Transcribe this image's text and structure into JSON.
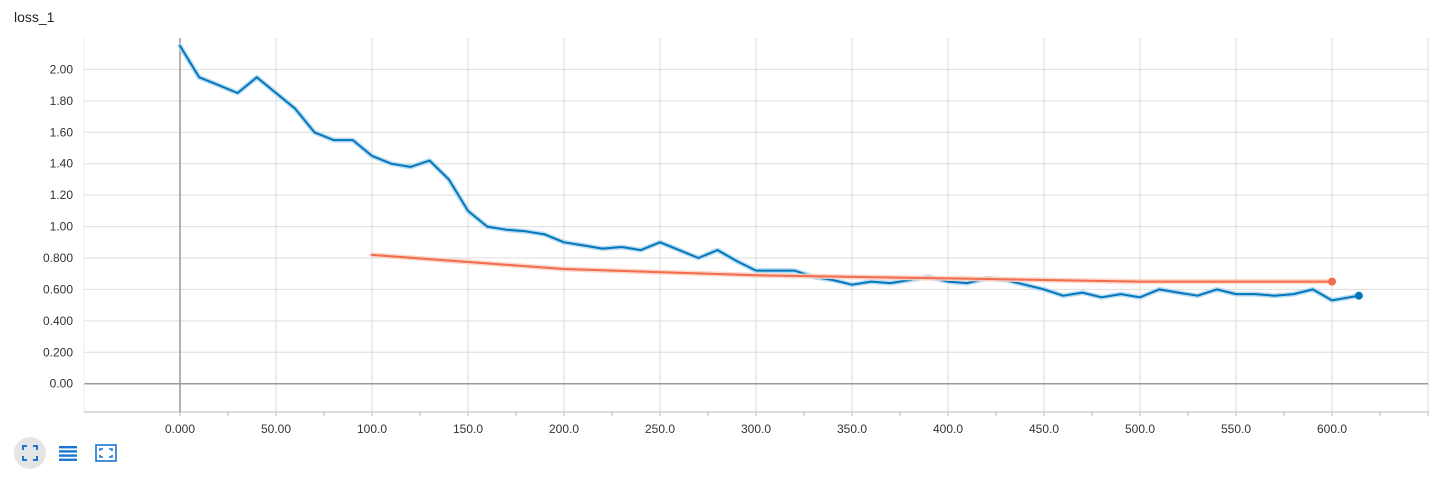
{
  "chart_title": "loss_1",
  "icons": {
    "expand": "fullscreen-icon",
    "data_table": "list-icon",
    "fit_domain": "fit-to-data-icon"
  },
  "colors": {
    "series_blue": "#0277bd",
    "series_blue_raw": "#b3d7ee",
    "series_orange": "#f26d4b",
    "series_orange_raw": "#fbd0c4",
    "grid": "#dddddd",
    "axis": "#999999"
  },
  "chart_data": {
    "type": "line",
    "title": "loss_1",
    "xlabel": "",
    "ylabel": "",
    "xlim": [
      -50,
      650
    ],
    "ylim": [
      -0.18,
      2.2
    ],
    "grid": true,
    "x_ticks": [
      "0.000",
      "50.00",
      "100.0",
      "150.0",
      "200.0",
      "250.0",
      "300.0",
      "350.0",
      "400.0",
      "450.0",
      "500.0",
      "550.0",
      "600.0"
    ],
    "y_ticks": [
      "0.00",
      "0.200",
      "0.400",
      "0.600",
      "0.800",
      "1.00",
      "1.20",
      "1.40",
      "1.60",
      "1.80",
      "2.00"
    ],
    "series": [
      {
        "color": "#0277bd",
        "raw_color": "#b3d7ee",
        "x": [
          0,
          10,
          20,
          30,
          40,
          50,
          60,
          70,
          80,
          90,
          100,
          110,
          120,
          130,
          140,
          150,
          160,
          170,
          180,
          190,
          200,
          210,
          220,
          230,
          240,
          250,
          260,
          270,
          280,
          290,
          300,
          310,
          320,
          330,
          340,
          350,
          360,
          370,
          380,
          390,
          400,
          410,
          420,
          430,
          440,
          450,
          460,
          470,
          480,
          490,
          500,
          510,
          520,
          530,
          540,
          550,
          560,
          570,
          580,
          590,
          600,
          614
        ],
        "y": [
          2.15,
          1.95,
          1.9,
          1.85,
          1.95,
          1.85,
          1.75,
          1.6,
          1.55,
          1.55,
          1.45,
          1.4,
          1.38,
          1.42,
          1.3,
          1.1,
          1.0,
          0.98,
          0.97,
          0.95,
          0.9,
          0.88,
          0.86,
          0.87,
          0.85,
          0.9,
          0.85,
          0.8,
          0.85,
          0.78,
          0.72,
          0.72,
          0.72,
          0.68,
          0.66,
          0.63,
          0.65,
          0.64,
          0.66,
          0.68,
          0.65,
          0.64,
          0.67,
          0.66,
          0.63,
          0.6,
          0.56,
          0.58,
          0.55,
          0.57,
          0.55,
          0.6,
          0.58,
          0.56,
          0.6,
          0.57,
          0.57,
          0.56,
          0.57,
          0.6,
          0.53,
          0.56
        ]
      },
      {
        "color": "#f26d4b",
        "raw_color": "#fbd0c4",
        "x": [
          100,
          200,
          300,
          400,
          500,
          600
        ],
        "y": [
          0.82,
          0.73,
          0.69,
          0.67,
          0.65,
          0.65
        ]
      }
    ]
  }
}
